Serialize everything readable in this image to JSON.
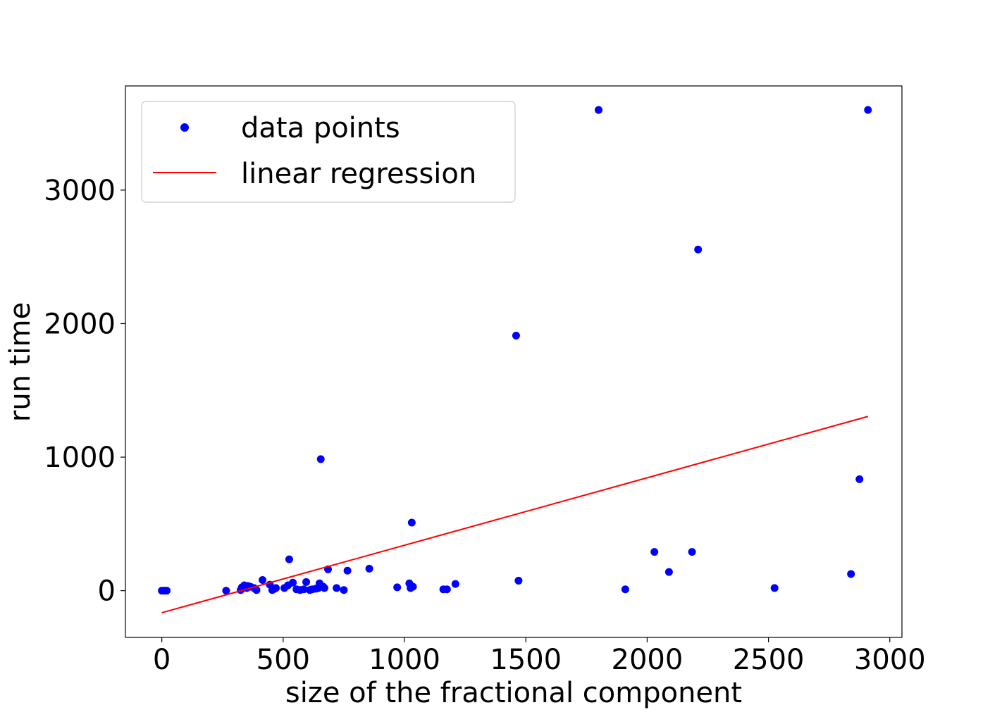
{
  "chart_data": {
    "type": "scatter",
    "title": "",
    "xlabel": "size of the fractional component",
    "ylabel": "run time",
    "xlim": [
      -150,
      3050
    ],
    "ylim": [
      -350,
      3780
    ],
    "xticks": [
      0,
      500,
      1000,
      1500,
      2000,
      2500,
      3000
    ],
    "yticks": [
      0,
      1000,
      2000,
      3000
    ],
    "grid": false,
    "legend": {
      "position": "top-left",
      "entries": [
        "data points",
        "linear regression"
      ]
    },
    "colors": {
      "points": "#0000ff",
      "line": "#ff0000"
    },
    "series": [
      {
        "name": "data points",
        "kind": "scatter",
        "points": [
          [
            0,
            0
          ],
          [
            10,
            0
          ],
          [
            20,
            0
          ],
          [
            265,
            0
          ],
          [
            325,
            5
          ],
          [
            330,
            25
          ],
          [
            340,
            40
          ],
          [
            350,
            20
          ],
          [
            355,
            35
          ],
          [
            365,
            30
          ],
          [
            380,
            20
          ],
          [
            390,
            5
          ],
          [
            415,
            80
          ],
          [
            445,
            45
          ],
          [
            455,
            5
          ],
          [
            465,
            15
          ],
          [
            470,
            20
          ],
          [
            505,
            20
          ],
          [
            520,
            40
          ],
          [
            525,
            235
          ],
          [
            540,
            60
          ],
          [
            555,
            10
          ],
          [
            570,
            5
          ],
          [
            585,
            10
          ],
          [
            595,
            65
          ],
          [
            610,
            5
          ],
          [
            620,
            10
          ],
          [
            635,
            15
          ],
          [
            645,
            20
          ],
          [
            650,
            55
          ],
          [
            655,
            985
          ],
          [
            665,
            30
          ],
          [
            670,
            20
          ],
          [
            685,
            160
          ],
          [
            720,
            20
          ],
          [
            750,
            5
          ],
          [
            765,
            150
          ],
          [
            855,
            165
          ],
          [
            970,
            25
          ],
          [
            1020,
            55
          ],
          [
            1025,
            20
          ],
          [
            1030,
            510
          ],
          [
            1035,
            30
          ],
          [
            1160,
            10
          ],
          [
            1175,
            10
          ],
          [
            1210,
            50
          ],
          [
            1460,
            1910
          ],
          [
            1470,
            75
          ],
          [
            1800,
            3600
          ],
          [
            1910,
            10
          ],
          [
            2030,
            290
          ],
          [
            2090,
            140
          ],
          [
            2185,
            290
          ],
          [
            2210,
            2555
          ],
          [
            2525,
            20
          ],
          [
            2840,
            125
          ],
          [
            2875,
            835
          ],
          [
            2910,
            3600
          ]
        ]
      },
      {
        "name": "linear regression",
        "kind": "line",
        "x": [
          0,
          2910
        ],
        "y": [
          -165,
          1305
        ]
      }
    ]
  }
}
